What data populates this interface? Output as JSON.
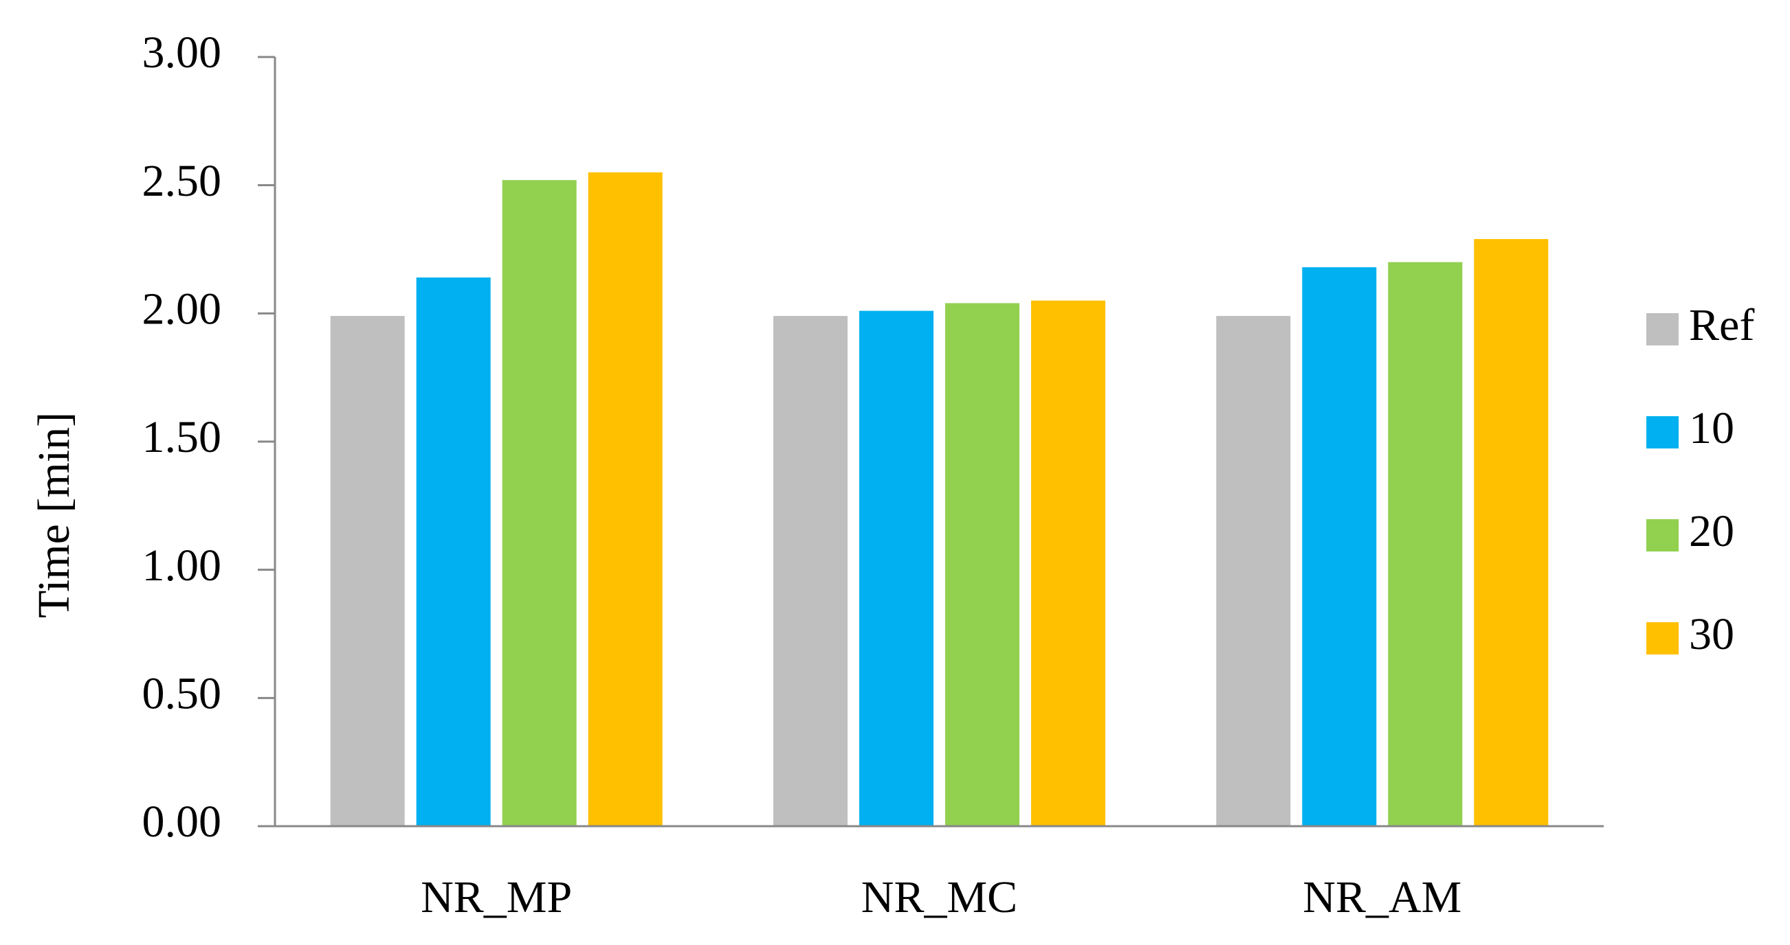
{
  "chart_data": {
    "type": "bar",
    "y_label": "Time [min]",
    "categories": [
      "NR_MP",
      "NR_MC",
      "NR_AM"
    ],
    "series": [
      {
        "name": "Ref",
        "color": "#bfbfbf",
        "values": [
          1.99,
          1.99,
          1.99
        ]
      },
      {
        "name": "10",
        "color": "#00b0f0",
        "values": [
          2.14,
          2.01,
          2.18
        ]
      },
      {
        "name": "20",
        "color": "#92d050",
        "values": [
          2.52,
          2.04,
          2.2
        ]
      },
      {
        "name": "30",
        "color": "#ffc000",
        "values": [
          2.55,
          2.05,
          2.29
        ]
      }
    ],
    "ylim": [
      0,
      3
    ],
    "yticks": [
      {
        "value": 0,
        "label": "0.00"
      },
      {
        "value": 0.5,
        "label": "0.50"
      },
      {
        "value": 1,
        "label": "1.00"
      },
      {
        "value": 1.5,
        "label": "1.50"
      },
      {
        "value": 2,
        "label": "2.00"
      },
      {
        "value": 2.5,
        "label": "2.50"
      },
      {
        "value": 3,
        "label": "3.00"
      }
    ],
    "grid": false,
    "legend": "right"
  }
}
